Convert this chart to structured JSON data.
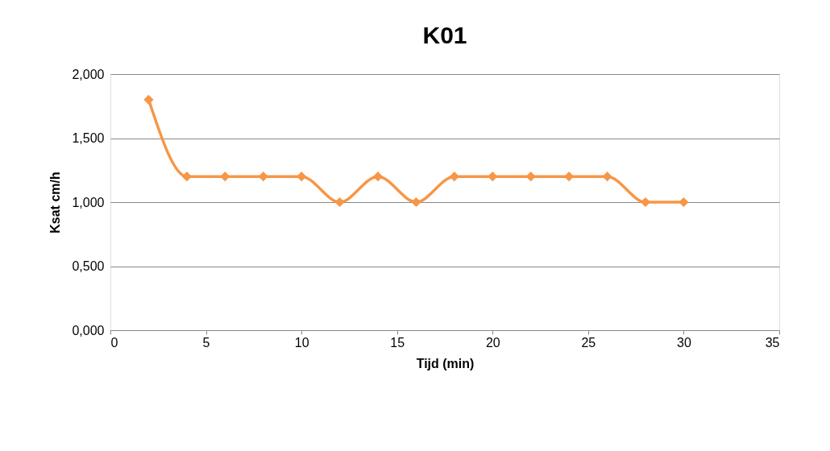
{
  "chart_data": {
    "type": "line",
    "title": "K01",
    "xlabel": "Tijd (min)",
    "ylabel": "Ksat cm/h",
    "x": [
      2,
      4,
      6,
      8,
      10,
      12,
      14,
      16,
      18,
      20,
      22,
      24,
      26,
      28,
      30
    ],
    "series": [
      {
        "color": "#f79646",
        "values": [
          1.8,
          1.2,
          1.2,
          1.2,
          1.2,
          1.0,
          1.2,
          1.0,
          1.2,
          1.2,
          1.2,
          1.2,
          1.2,
          1.0,
          1.0
        ]
      }
    ],
    "xlim": [
      0,
      35
    ],
    "xticks": [
      0,
      5,
      10,
      15,
      20,
      25,
      30,
      35
    ],
    "ylim": [
      0,
      2
    ],
    "yticks": [
      {
        "value": 0,
        "label": "0,000"
      },
      {
        "value": 0.5,
        "label": "0,500"
      },
      {
        "value": 1,
        "label": "1,000"
      },
      {
        "value": 1.5,
        "label": "1,500"
      },
      {
        "value": 2,
        "label": "2,000"
      }
    ],
    "grid": "y",
    "marker": "diamond",
    "line_style": "solid"
  }
}
